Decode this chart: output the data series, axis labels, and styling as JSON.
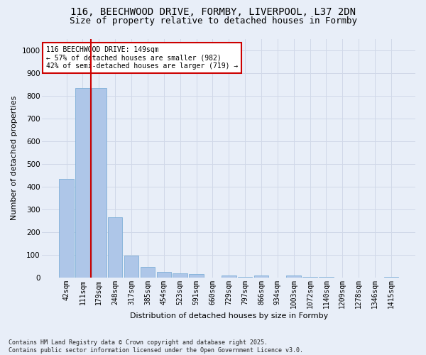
{
  "title_line1": "116, BEECHWOOD DRIVE, FORMBY, LIVERPOOL, L37 2DN",
  "title_line2": "Size of property relative to detached houses in Formby",
  "xlabel": "Distribution of detached houses by size in Formby",
  "ylabel": "Number of detached properties",
  "bar_labels": [
    "42sqm",
    "111sqm",
    "179sqm",
    "248sqm",
    "317sqm",
    "385sqm",
    "454sqm",
    "523sqm",
    "591sqm",
    "660sqm",
    "729sqm",
    "797sqm",
    "866sqm",
    "934sqm",
    "1003sqm",
    "1072sqm",
    "1140sqm",
    "1209sqm",
    "1278sqm",
    "1346sqm",
    "1415sqm"
  ],
  "bar_values": [
    435,
    835,
    835,
    265,
    95,
    45,
    25,
    18,
    13,
    0,
    8,
    3,
    8,
    0,
    8,
    3,
    3,
    0,
    0,
    0,
    3
  ],
  "bar_color": "#aec6e8",
  "bar_edge_color": "#7fb0d8",
  "vline_x_idx": 1.5,
  "vline_color": "#cc0000",
  "annotation_text": "116 BEECHWOOD DRIVE: 149sqm\n← 57% of detached houses are smaller (982)\n42% of semi-detached houses are larger (719) →",
  "annotation_box_color": "white",
  "annotation_box_edge": "#cc0000",
  "ylim": [
    0,
    1050
  ],
  "yticks": [
    0,
    100,
    200,
    300,
    400,
    500,
    600,
    700,
    800,
    900,
    1000
  ],
  "grid_color": "#d0d8e8",
  "bg_color": "#e8eef8",
  "footer_text": "Contains HM Land Registry data © Crown copyright and database right 2025.\nContains public sector information licensed under the Open Government Licence v3.0.",
  "title_fontsize": 10,
  "subtitle_fontsize": 9,
  "label_fontsize": 8,
  "tick_fontsize": 7,
  "ann_fontsize": 7
}
